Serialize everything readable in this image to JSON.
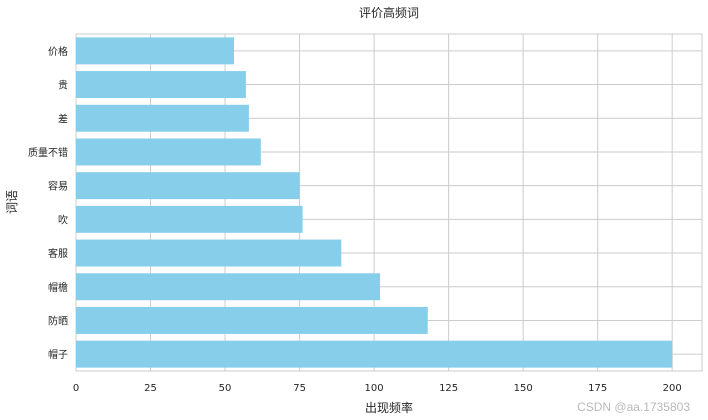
{
  "chart_data": {
    "type": "bar",
    "orientation": "horizontal",
    "title": "评价高频词",
    "xlabel": "出现频率",
    "ylabel": "词语",
    "categories": [
      "帽子",
      "防晒",
      "帽檐",
      "客服",
      "吹",
      "容易",
      "质量不错",
      "差",
      "贵",
      "价格"
    ],
    "values": [
      200,
      118,
      102,
      89,
      76,
      75,
      62,
      58,
      57,
      53
    ],
    "xlim": [
      0,
      210
    ],
    "xticks": [
      0,
      25,
      50,
      75,
      100,
      125,
      150,
      175,
      200
    ],
    "grid": true,
    "bar_color": "#87CEEB",
    "grid_color": "#cccccc",
    "background": "#ffffff"
  },
  "watermark": "CSDN @aa.1735803"
}
